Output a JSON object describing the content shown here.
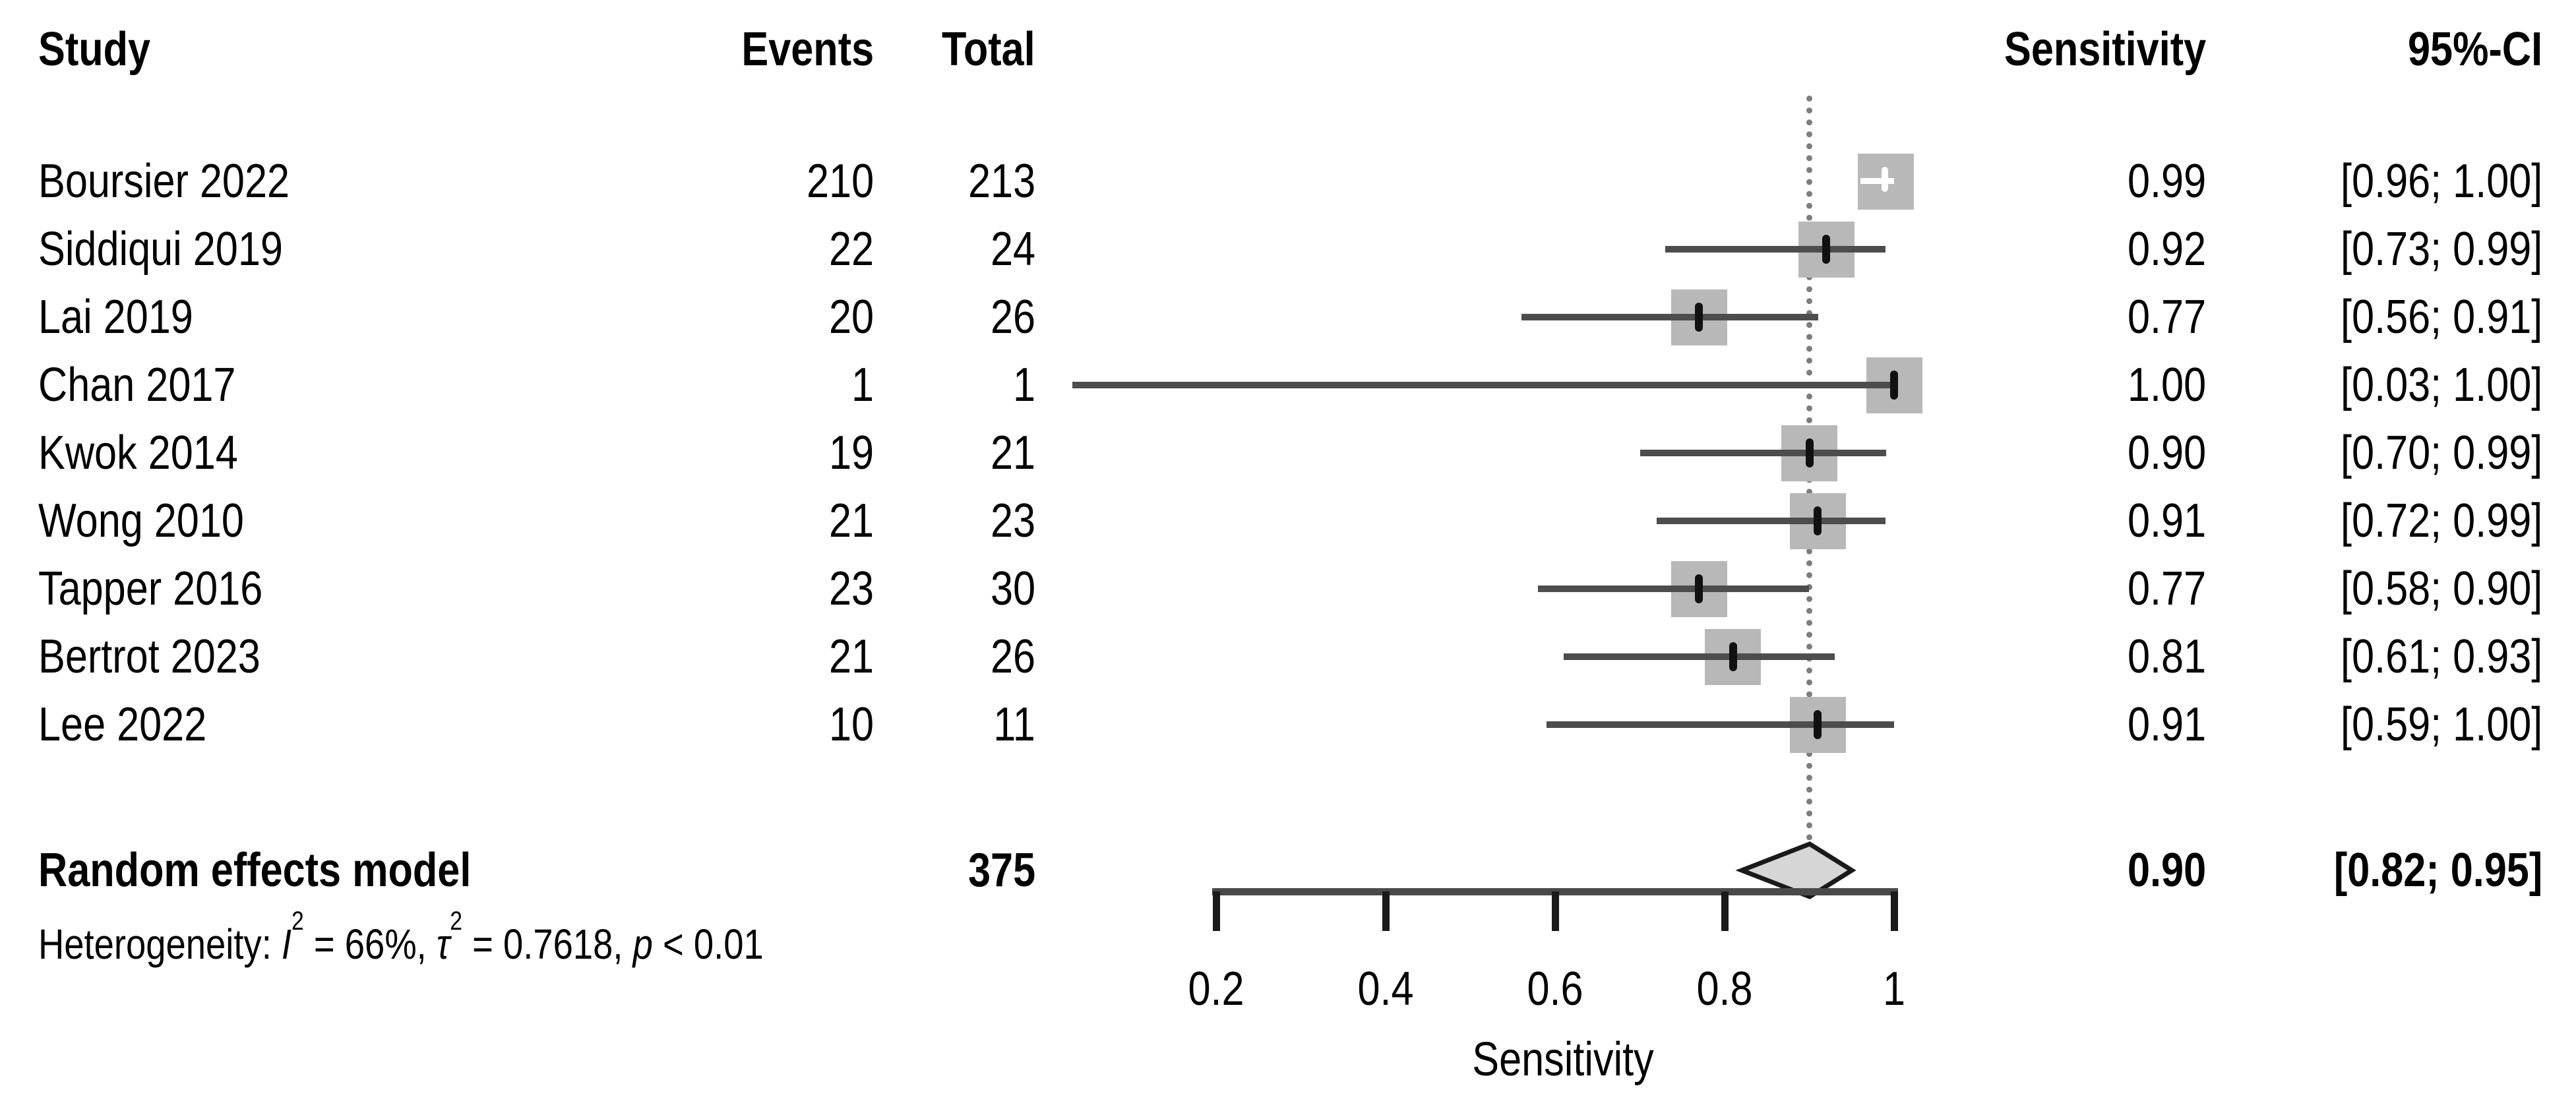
{
  "columns": {
    "study": "Study",
    "events": "Events",
    "total": "Total",
    "sensitivity": "Sensitivity",
    "ci": "95%-CI"
  },
  "studies": [
    {
      "name": "Boursier 2022",
      "events": "210",
      "total": "213",
      "sensitivity": "0.99",
      "ci": "[0.96; 1.00]",
      "est": 0.99,
      "lo": 0.96,
      "hi": 1.0
    },
    {
      "name": "Siddiqui 2019",
      "events": "22",
      "total": "24",
      "sensitivity": "0.92",
      "ci": "[0.73; 0.99]",
      "est": 0.92,
      "lo": 0.73,
      "hi": 0.99
    },
    {
      "name": "Lai 2019",
      "events": "20",
      "total": "26",
      "sensitivity": "0.77",
      "ci": "[0.56; 0.91]",
      "est": 0.77,
      "lo": 0.56,
      "hi": 0.91
    },
    {
      "name": "Chan 2017",
      "events": "1",
      "total": "1",
      "sensitivity": "1.00",
      "ci": "[0.03; 1.00]",
      "est": 1.0,
      "lo": 0.03,
      "hi": 1.0
    },
    {
      "name": "Kwok 2014",
      "events": "19",
      "total": "21",
      "sensitivity": "0.90",
      "ci": "[0.70; 0.99]",
      "est": 0.9,
      "lo": 0.7,
      "hi": 0.99
    },
    {
      "name": "Wong 2010",
      "events": "21",
      "total": "23",
      "sensitivity": "0.91",
      "ci": "[0.72; 0.99]",
      "est": 0.91,
      "lo": 0.72,
      "hi": 0.99
    },
    {
      "name": "Tapper 2016",
      "events": "23",
      "total": "30",
      "sensitivity": "0.77",
      "ci": "[0.58; 0.90]",
      "est": 0.77,
      "lo": 0.58,
      "hi": 0.9
    },
    {
      "name": "Bertrot 2023",
      "events": "21",
      "total": "26",
      "sensitivity": "0.81",
      "ci": "[0.61; 0.93]",
      "est": 0.81,
      "lo": 0.61,
      "hi": 0.93
    },
    {
      "name": "Lee 2022",
      "events": "10",
      "total": "11",
      "sensitivity": "0.91",
      "ci": "[0.59; 1.00]",
      "est": 0.91,
      "lo": 0.59,
      "hi": 1.0
    }
  ],
  "pooled": {
    "label": "Random effects model",
    "total": "375",
    "sensitivity": "0.90",
    "ci": "[0.82; 0.95]",
    "est": 0.9,
    "lo": 0.82,
    "hi": 0.95
  },
  "heterogeneity": {
    "label": "Heterogeneity: ",
    "i2_sym": "I",
    "i2_sup": "2",
    "i2_rest": " = 66%, ",
    "tau_sym": "τ",
    "tau_sup": "2",
    "tau_rest": " = 0.7618, ",
    "p_sym": "p",
    "p_rest": " < 0.01"
  },
  "axis": {
    "label": "Sensitivity",
    "ticks": [
      "0.2",
      "0.4",
      "0.6",
      "0.8",
      "1"
    ],
    "tick_values": [
      0.2,
      0.4,
      0.6,
      0.8,
      1.0
    ],
    "min": 0.2,
    "max": 1.0
  },
  "colors": {
    "square": "#b8b8b8",
    "ci_line": "#4d4d4d",
    "diamond_fill": "#d6d6d6",
    "diamond_stroke": "#1a1a1a",
    "ref_line": "#7d7d7d"
  },
  "chart_data": {
    "type": "scatter",
    "subtype": "forest-plot",
    "title": "",
    "xlabel": "Sensitivity",
    "xlim": [
      0.2,
      1.0
    ],
    "x_ticks": [
      0.2,
      0.4,
      0.6,
      0.8,
      1.0
    ],
    "reference_line": 0.9,
    "columns": [
      "Study",
      "Events",
      "Total",
      "Sensitivity",
      "95%-CI"
    ],
    "studies": [
      "Boursier 2022",
      "Siddiqui 2019",
      "Lai 2019",
      "Chan 2017",
      "Kwok 2014",
      "Wong 2010",
      "Tapper 2016",
      "Bertrot 2023",
      "Lee 2022"
    ],
    "events": [
      210,
      22,
      20,
      1,
      19,
      21,
      23,
      21,
      10
    ],
    "totals": [
      213,
      24,
      26,
      1,
      21,
      23,
      30,
      26,
      11
    ],
    "estimates": [
      0.99,
      0.92,
      0.77,
      1.0,
      0.9,
      0.91,
      0.77,
      0.81,
      0.91
    ],
    "ci_lower": [
      0.96,
      0.73,
      0.56,
      0.03,
      0.7,
      0.72,
      0.58,
      0.61,
      0.59
    ],
    "ci_upper": [
      1.0,
      0.99,
      0.91,
      1.0,
      0.99,
      0.99,
      0.9,
      0.93,
      1.0
    ],
    "pooled": {
      "model": "Random effects model",
      "total": 375,
      "estimate": 0.9,
      "ci_lower": 0.82,
      "ci_upper": 0.95
    },
    "heterogeneity": {
      "I2": "66%",
      "tau2": 0.7618,
      "p": "< 0.01"
    }
  }
}
